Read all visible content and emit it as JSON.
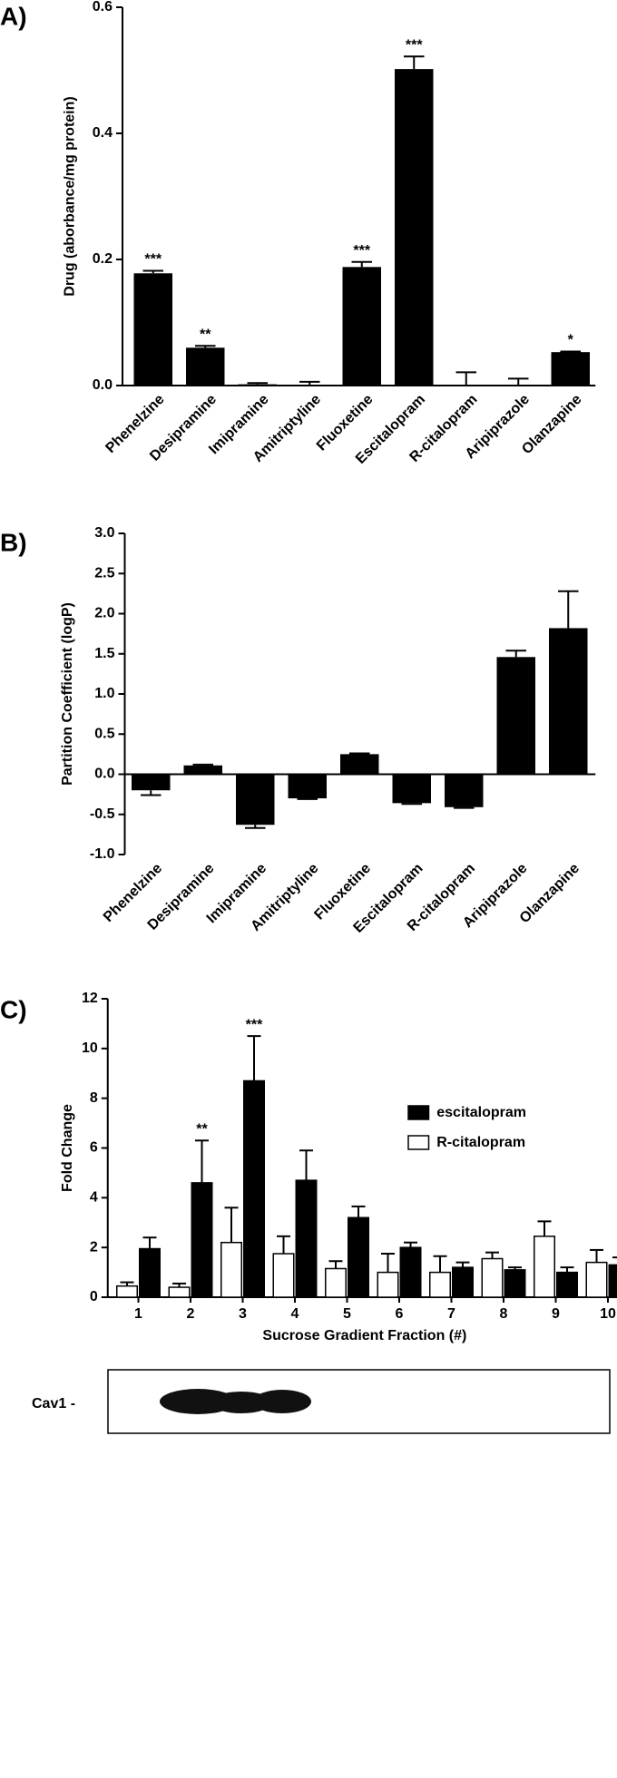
{
  "chart_data": [
    {
      "type": "bar",
      "panel": "A)",
      "ylabel": "Drug (aborbance/mg protein)",
      "categories": [
        "Phenelzine",
        "Desipramine",
        "Imipramine",
        "Amitriptyline",
        "Fluoxetine",
        "Escitalopram",
        "R-citalopram",
        "Aripiprazole",
        "Olanzapine"
      ],
      "color": "#000000",
      "values": [
        0.178,
        0.06,
        0.002,
        0.001,
        0.188,
        0.502,
        0.001,
        0.001,
        0.053
      ],
      "errors": [
        0.004,
        0.003,
        0.002,
        0.005,
        0.008,
        0.02,
        0.02,
        0.01,
        0.001
      ],
      "annotations": [
        "***",
        "**",
        null,
        null,
        "***",
        "***",
        null,
        null,
        "*"
      ],
      "ylim": [
        0,
        0.6
      ],
      "yticks": [
        {
          "value": 0,
          "label": "0.0"
        },
        0.2,
        0.4,
        0.6
      ]
    },
    {
      "type": "bar",
      "panel": "B)",
      "ylabel": "Partition Coefficient (logP)",
      "categories": [
        "Phenelzine",
        "Desipramine",
        "Imipramine",
        "Amitriptyline",
        "Fluoxetine",
        "Escitalopram",
        "R-citalopram",
        "Aripiprazole",
        "Olanzapine"
      ],
      "color": "#000000",
      "values": [
        -0.2,
        0.11,
        -0.63,
        -0.3,
        0.25,
        -0.36,
        -0.41,
        1.46,
        1.82
      ],
      "errors": [
        0.06,
        0.01,
        0.04,
        0.01,
        0.01,
        0.01,
        0.01,
        0.08,
        0.46
      ],
      "ylim": [
        -1,
        3
      ],
      "yticks": [
        {
          "value": -1,
          "label": "-1.0"
        },
        -0.5,
        {
          "value": 0,
          "label": "0.0"
        },
        0.5,
        {
          "value": 1,
          "label": "1.0"
        },
        1.5,
        {
          "value": 2,
          "label": "2.0"
        },
        2.5,
        {
          "value": 3,
          "label": "3.0"
        }
      ]
    },
    {
      "type": "grouped-bar",
      "panel": "C)",
      "ylabel": "Fold Change",
      "xlabel": "Sucrose Gradient Fraction (#)",
      "categories": [
        "1",
        "2",
        "3",
        "4",
        "5",
        "6",
        "7",
        "8",
        "9",
        "10"
      ],
      "series": [
        {
          "name": "escitalopram",
          "color": "#000000",
          "values": [
            1.95,
            4.6,
            8.7,
            4.7,
            3.2,
            2.0,
            1.2,
            1.1,
            1.0,
            1.3
          ],
          "errors": [
            0.45,
            1.7,
            1.8,
            1.2,
            0.45,
            0.2,
            0.2,
            0.1,
            0.2,
            0.3
          ],
          "annotations": [
            null,
            "**",
            "***",
            null,
            null,
            null,
            null,
            null,
            null,
            null
          ]
        },
        {
          "name": "R-citalopram",
          "color": "#ffffff",
          "values": [
            0.45,
            0.4,
            2.2,
            1.75,
            1.15,
            1.0,
            1.0,
            1.55,
            2.45,
            1.4
          ],
          "errors": [
            0.15,
            0.15,
            1.4,
            0.7,
            0.3,
            0.75,
            0.65,
            0.25,
            0.6,
            0.5
          ]
        }
      ],
      "ylim": [
        0,
        12
      ],
      "yticks": [
        0,
        2,
        4,
        6,
        8,
        10,
        12
      ],
      "legend": "upper right"
    }
  ],
  "blot": {
    "label": "Cav1 -"
  }
}
